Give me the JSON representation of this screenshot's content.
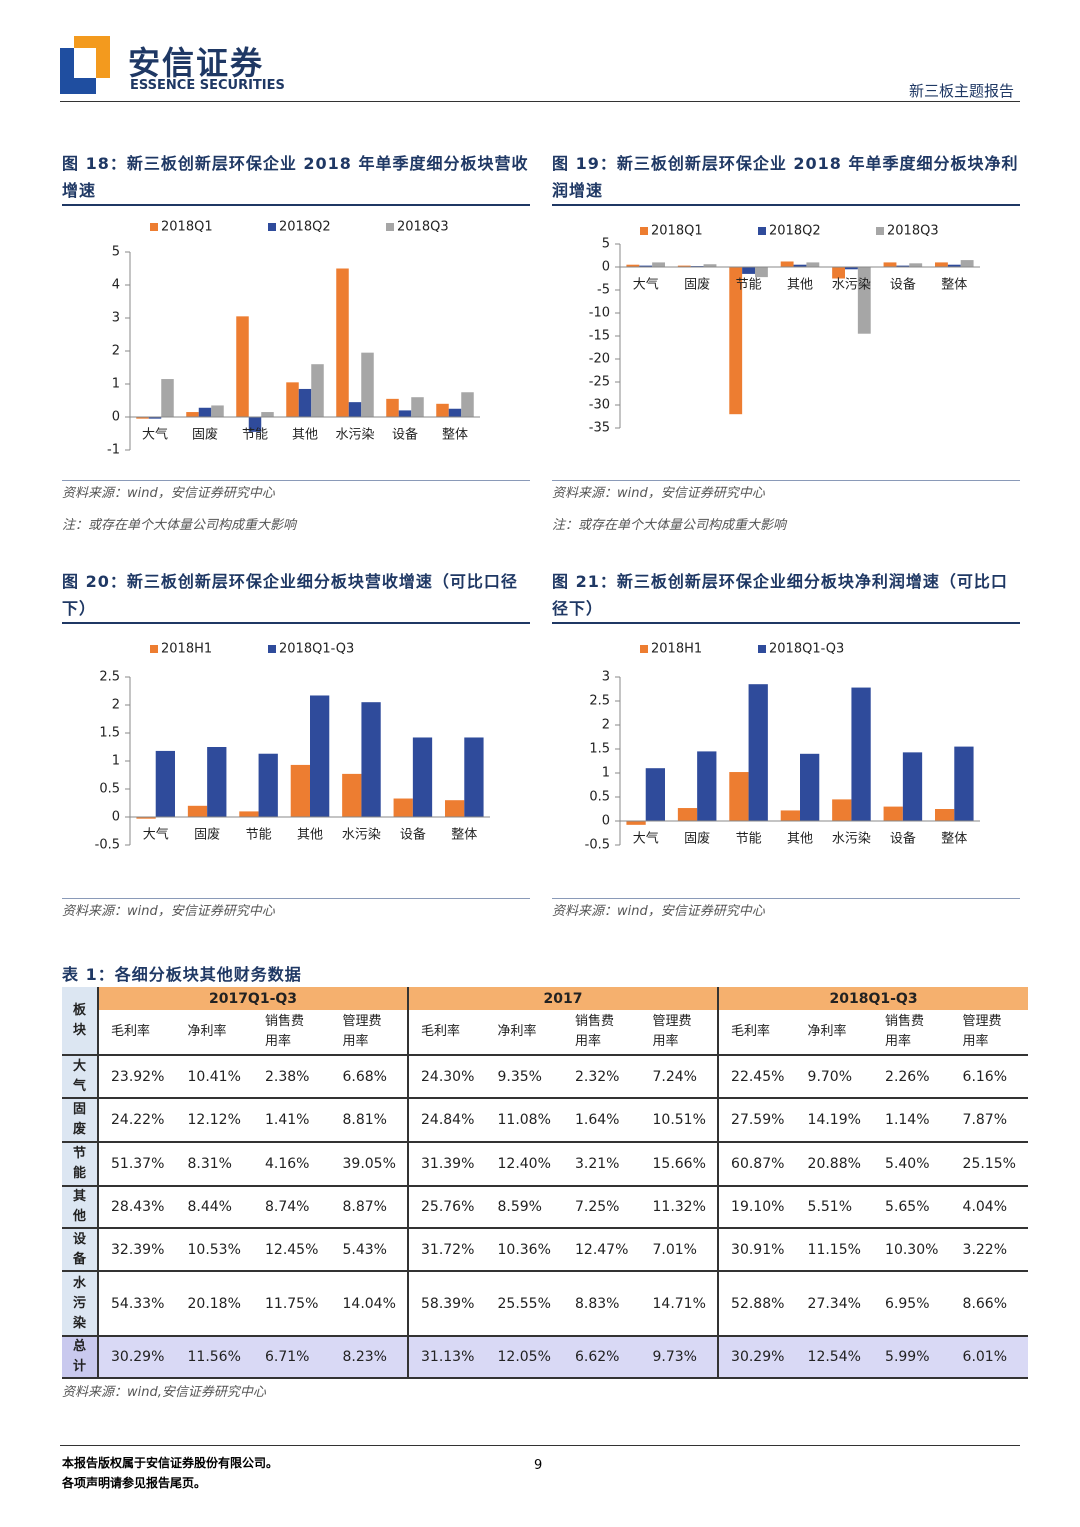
{
  "header": {
    "company": "安信证券",
    "company_en": "ESSENCE SECURITIES",
    "report_type": "新三板主题报告"
  },
  "chart_data": [
    {
      "type": "bar",
      "title": "图 18：新三板创新层环保企业 2018 年单季度细分板块营收增速",
      "categories": [
        "大气",
        "固废",
        "节能",
        "其他",
        "水污染",
        "设备",
        "整体"
      ],
      "series": [
        {
          "name": "2018Q1",
          "color": "#ed7d31",
          "values": [
            -0.05,
            0.15,
            3.05,
            1.05,
            4.5,
            0.55,
            0.4
          ]
        },
        {
          "name": "2018Q2",
          "color": "#2f4b9b",
          "values": [
            -0.05,
            0.28,
            -0.45,
            0.85,
            0.45,
            0.2,
            0.25
          ]
        },
        {
          "name": "2018Q3",
          "color": "#a6a6a6",
          "values": [
            1.15,
            0.35,
            0.15,
            1.6,
            1.95,
            0.6,
            0.75
          ]
        }
      ],
      "ylim": [
        -1,
        5
      ],
      "yticks": [
        -1,
        0,
        1,
        2,
        3,
        4,
        5
      ],
      "source": "资料来源：wind，安信证券研究中心",
      "note": "注：或存在单个大体量公司构成重大影响"
    },
    {
      "type": "bar",
      "title": "图 19：新三板创新层环保企业 2018 年单季度细分板块净利润增速",
      "categories": [
        "大气",
        "固废",
        "节能",
        "其他",
        "水污染",
        "设备",
        "整体"
      ],
      "series": [
        {
          "name": "2018Q1",
          "color": "#ed7d31",
          "values": [
            0.5,
            0.3,
            -32,
            1.2,
            -2.5,
            1.0,
            1.0
          ]
        },
        {
          "name": "2018Q2",
          "color": "#2f4b9b",
          "values": [
            0.3,
            0.2,
            -1.5,
            0.5,
            -0.5,
            0.3,
            0.5
          ]
        },
        {
          "name": "2018Q3",
          "color": "#a6a6a6",
          "values": [
            1.0,
            0.6,
            -2.2,
            1.0,
            -14.5,
            0.8,
            1.5
          ]
        }
      ],
      "ylim": [
        -35,
        5
      ],
      "yticks": [
        -35,
        -30,
        -25,
        -20,
        -15,
        -10,
        -5,
        0,
        5
      ],
      "source": "资料来源：wind，安信证券研究中心",
      "note": "注：或存在单个大体量公司构成重大影响"
    },
    {
      "type": "bar",
      "title": "图 20：新三板创新层环保企业细分板块营收增速（可比口径下）",
      "categories": [
        "大气",
        "固废",
        "节能",
        "其他",
        "水污染",
        "设备",
        "整体"
      ],
      "series": [
        {
          "name": "2018H1",
          "color": "#ed7d31",
          "values": [
            -0.03,
            0.2,
            0.1,
            0.93,
            0.77,
            0.33,
            0.3
          ]
        },
        {
          "name": "2018Q1-Q3",
          "color": "#2f4b9b",
          "values": [
            1.18,
            1.25,
            1.13,
            2.17,
            2.05,
            1.42,
            1.42
          ]
        }
      ],
      "ylim": [
        -0.5,
        2.5
      ],
      "yticks": [
        -0.5,
        0,
        0.5,
        1,
        1.5,
        2,
        2.5
      ],
      "source": "资料来源：wind，安信证券研究中心"
    },
    {
      "type": "bar",
      "title": "图 21：新三板创新层环保企业细分板块净利润增速（可比口径下）",
      "categories": [
        "大气",
        "固废",
        "节能",
        "其他",
        "水污染",
        "设备",
        "整体"
      ],
      "series": [
        {
          "name": "2018H1",
          "color": "#ed7d31",
          "values": [
            -0.08,
            0.27,
            1.02,
            0.22,
            0.45,
            0.3,
            0.25
          ]
        },
        {
          "name": "2018Q1-Q3",
          "color": "#2f4b9b",
          "values": [
            1.1,
            1.45,
            2.85,
            1.4,
            2.78,
            1.43,
            1.55
          ]
        }
      ],
      "ylim": [
        -0.5,
        3
      ],
      "yticks": [
        -0.5,
        0,
        0.5,
        1,
        1.5,
        2,
        2.5,
        3
      ],
      "source": "资料来源：wind，安信证券研究中心"
    }
  ],
  "table": {
    "title": "表 1：各细分板块其他财务数据",
    "corner": "板块",
    "groups": [
      "2017Q1-Q3",
      "2017",
      "2018Q1-Q3"
    ],
    "columns": [
      "毛利率",
      "净利率",
      "销售费用率",
      "管理费用率",
      "毛利率",
      "净利率",
      "销售费用率",
      "管理费用率",
      "毛利率",
      "净利率",
      "销售费用率",
      "管理费用率"
    ],
    "rows": [
      [
        "大气",
        "23.92%",
        "10.41%",
        "2.38%",
        "6.68%",
        "24.30%",
        "9.35%",
        "2.32%",
        "7.24%",
        "22.45%",
        "9.70%",
        "2.26%",
        "6.16%"
      ],
      [
        "固废",
        "24.22%",
        "12.12%",
        "1.41%",
        "8.81%",
        "24.84%",
        "11.08%",
        "1.64%",
        "10.51%",
        "27.59%",
        "14.19%",
        "1.14%",
        "7.87%"
      ],
      [
        "节能",
        "51.37%",
        "8.31%",
        "4.16%",
        "39.05%",
        "31.39%",
        "12.40%",
        "3.21%",
        "15.66%",
        "60.87%",
        "20.88%",
        "5.40%",
        "25.15%"
      ],
      [
        "其他",
        "28.43%",
        "8.44%",
        "8.74%",
        "8.87%",
        "25.76%",
        "8.59%",
        "7.25%",
        "11.32%",
        "19.10%",
        "5.51%",
        "5.65%",
        "4.04%"
      ],
      [
        "设备",
        "32.39%",
        "10.53%",
        "12.45%",
        "5.43%",
        "31.72%",
        "10.36%",
        "12.47%",
        "7.01%",
        "30.91%",
        "11.15%",
        "10.30%",
        "3.22%"
      ],
      [
        "水污染",
        "54.33%",
        "20.18%",
        "11.75%",
        "14.04%",
        "58.39%",
        "25.55%",
        "8.83%",
        "14.71%",
        "52.88%",
        "27.34%",
        "6.95%",
        "8.66%"
      ],
      [
        "总计",
        "30.29%",
        "11.56%",
        "6.71%",
        "8.23%",
        "31.13%",
        "12.05%",
        "6.62%",
        "9.73%",
        "30.29%",
        "12.54%",
        "5.99%",
        "6.01%"
      ]
    ],
    "source": "资料来源：wind,安信证券研究中心"
  },
  "footer": {
    "copyright": "本报告版权属于安信证券股份有限公司。",
    "disclaimer": "各项声明请参见报告尾页。",
    "page": 9
  }
}
